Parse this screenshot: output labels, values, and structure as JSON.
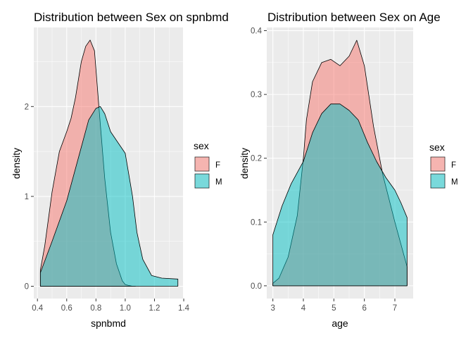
{
  "chart_data": [
    {
      "type": "area",
      "title": "Distribution between Sex on spnbmd",
      "xlabel": "spnbmd",
      "ylabel": "density",
      "xlim": [
        0.375,
        1.395
      ],
      "ylim": [
        -0.137,
        2.88
      ],
      "x_ticks": [
        0.4,
        0.6,
        0.8,
        1.0,
        1.2,
        1.4
      ],
      "x_tick_labels": [
        "0.4",
        "0.6",
        "0.8",
        "1.0",
        "1.2",
        "1.4"
      ],
      "x_minor_ticks": [
        0.5,
        0.7,
        0.9,
        1.1,
        1.3
      ],
      "y_ticks": [
        0,
        1,
        2
      ],
      "y_tick_labels": [
        "0",
        "1",
        "2"
      ],
      "y_minor_ticks": [
        0.5,
        1.5,
        2.5
      ],
      "grid": true,
      "legend": {
        "title": "sex",
        "placement": "right",
        "entries": [
          {
            "label": "F",
            "color": "#F8766D"
          },
          {
            "label": "M",
            "color": "#00BFC4"
          }
        ]
      },
      "series": [
        {
          "name": "F",
          "color": "#F8766D",
          "x": [
            0.42,
            0.45,
            0.5,
            0.55,
            0.6,
            0.63,
            0.66,
            0.7,
            0.73,
            0.76,
            0.79,
            0.82,
            0.86,
            0.9,
            0.94,
            0.98,
            1.0,
            1.02,
            1.05,
            1.07
          ],
          "y": [
            0.18,
            0.45,
            1.05,
            1.5,
            1.72,
            1.87,
            2.1,
            2.5,
            2.67,
            2.74,
            2.62,
            2.0,
            1.2,
            0.6,
            0.25,
            0.06,
            0.02,
            0.01,
            0.0,
            0.0
          ]
        },
        {
          "name": "M",
          "color": "#00BFC4",
          "x": [
            0.42,
            0.5,
            0.6,
            0.7,
            0.75,
            0.8,
            0.83,
            0.86,
            0.9,
            0.95,
            1.0,
            1.05,
            1.08,
            1.12,
            1.18,
            1.25,
            1.36
          ],
          "y": [
            0.15,
            0.5,
            0.95,
            1.55,
            1.85,
            1.98,
            2.0,
            1.92,
            1.72,
            1.6,
            1.48,
            1.0,
            0.6,
            0.3,
            0.12,
            0.09,
            0.08
          ]
        }
      ]
    },
    {
      "type": "area",
      "title": "Distribution between Sex on Age",
      "xlabel": "age",
      "ylabel": "density",
      "xlim": [
        2.8,
        7.6
      ],
      "ylim": [
        -0.02,
        0.405
      ],
      "x_ticks": [
        3,
        4,
        5,
        6,
        7
      ],
      "x_tick_labels": [
        "3",
        "4",
        "5",
        "6",
        "7"
      ],
      "x_minor_ticks": [
        3.5,
        4.5,
        5.5,
        6.5
      ],
      "y_ticks": [
        0,
        0.1,
        0.2,
        0.3,
        0.4
      ],
      "y_tick_labels": [
        "0.0",
        "0.1",
        "0.2",
        "0.3",
        "0.4"
      ],
      "y_minor_ticks": [
        0.05,
        0.15,
        0.25,
        0.35
      ],
      "grid": true,
      "legend": {
        "title": "sex",
        "placement": "right",
        "entries": [
          {
            "label": "F",
            "color": "#F8766D"
          },
          {
            "label": "M",
            "color": "#00BFC4"
          }
        ]
      },
      "series": [
        {
          "name": "F",
          "color": "#F8766D",
          "x": [
            3.0,
            3.2,
            3.5,
            3.8,
            4.0,
            4.1,
            4.3,
            4.6,
            4.9,
            5.2,
            5.5,
            5.75,
            6.0,
            6.3,
            6.6,
            7.0,
            7.4
          ],
          "y": [
            0.004,
            0.012,
            0.045,
            0.11,
            0.2,
            0.26,
            0.32,
            0.35,
            0.355,
            0.345,
            0.36,
            0.385,
            0.345,
            0.25,
            0.175,
            0.1,
            0.03
          ]
        },
        {
          "name": "M",
          "color": "#00BFC4",
          "x": [
            3.0,
            3.3,
            3.6,
            4.0,
            4.3,
            4.6,
            4.9,
            5.2,
            5.5,
            5.8,
            6.1,
            6.4,
            6.7,
            7.0,
            7.2,
            7.4
          ],
          "y": [
            0.08,
            0.125,
            0.16,
            0.195,
            0.24,
            0.27,
            0.285,
            0.285,
            0.275,
            0.26,
            0.225,
            0.195,
            0.17,
            0.15,
            0.13,
            0.107
          ]
        }
      ]
    }
  ]
}
